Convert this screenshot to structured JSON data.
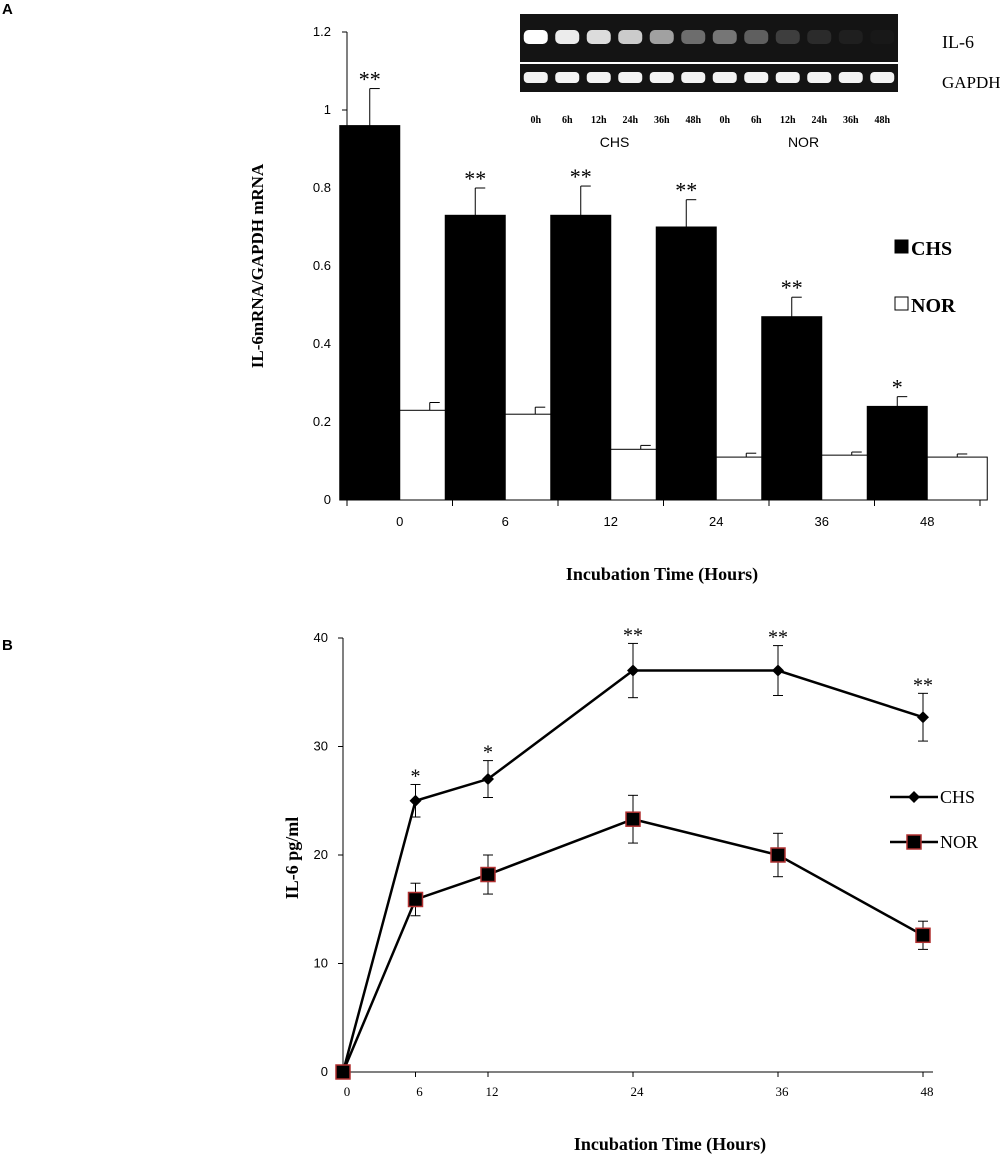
{
  "panel_labels": {
    "a": "A",
    "b": "B"
  },
  "chart_data": [
    {
      "type": "bar",
      "xlabel": "Incubation Time (Hours)",
      "ylabel": "IL-6mRNA/GAPDH mRNA",
      "ylim": [
        0,
        1.2
      ],
      "yticks": [
        "0",
        "0.2",
        "0.4",
        "0.6",
        "0.8",
        "1",
        "1.2"
      ],
      "categories": [
        "0",
        "6",
        "12",
        "24",
        "36",
        "48"
      ],
      "series": [
        {
          "name": "CHS",
          "values": [
            0.96,
            0.73,
            0.73,
            0.7,
            0.47,
            0.24
          ],
          "errors": [
            0.095,
            0.07,
            0.075,
            0.07,
            0.05,
            0.025
          ],
          "color": "#000000"
        },
        {
          "name": "NOR",
          "values": [
            0.23,
            0.22,
            0.13,
            0.11,
            0.115,
            0.11
          ],
          "errors": [
            0.02,
            0.018,
            0.01,
            0.01,
            0.008,
            0.008
          ],
          "color": "#ffffff"
        }
      ],
      "annotations": [
        "**",
        "**",
        "**",
        "**",
        "**",
        "*"
      ],
      "legend": {
        "position": "right",
        "entries": [
          "CHS",
          "NOR"
        ]
      },
      "grid": false,
      "inset_gel": {
        "row_labels": [
          "IL-6",
          "GAPDH"
        ],
        "lanes": [
          "0h",
          "6h",
          "12h",
          "24h",
          "36h",
          "48h",
          "0h",
          "6h",
          "12h",
          "24h",
          "36h",
          "48h"
        ],
        "groups": [
          "CHS",
          "NOR"
        ],
        "il6_intensity": [
          1.0,
          0.92,
          0.85,
          0.78,
          0.6,
          0.38,
          0.42,
          0.32,
          0.18,
          0.1,
          0.05,
          0.02
        ]
      }
    },
    {
      "type": "line",
      "xlabel": "Incubation Time (Hours)",
      "ylabel": "IL-6 pg/ml",
      "ylim": [
        0,
        40
      ],
      "xlim": [
        0,
        48
      ],
      "yticks": [
        "0",
        "10",
        "20",
        "30",
        "40"
      ],
      "xticks": [
        "0",
        "6",
        "12",
        "24",
        "36",
        "48"
      ],
      "x": [
        0,
        6,
        12,
        24,
        36,
        48
      ],
      "series": [
        {
          "name": "CHS",
          "values": [
            0,
            25,
            27,
            37,
            37,
            32.7
          ],
          "errors": [
            0,
            1.5,
            1.7,
            2.5,
            2.3,
            2.2
          ],
          "marker": "diamond",
          "color": "#000000"
        },
        {
          "name": "NOR",
          "values": [
            0,
            15.9,
            18.2,
            23.3,
            20,
            12.6
          ],
          "errors": [
            0,
            1.5,
            1.8,
            2.2,
            2,
            1.3
          ],
          "marker": "square",
          "color": "#000000",
          "marker_fill": "#000000",
          "marker_edge": "#b03030"
        }
      ],
      "annotations": [
        "",
        "*",
        "*",
        "**",
        "**",
        "**"
      ],
      "legend": {
        "position": "right",
        "entries": [
          "CHS",
          "NOR"
        ]
      },
      "grid": false
    }
  ]
}
